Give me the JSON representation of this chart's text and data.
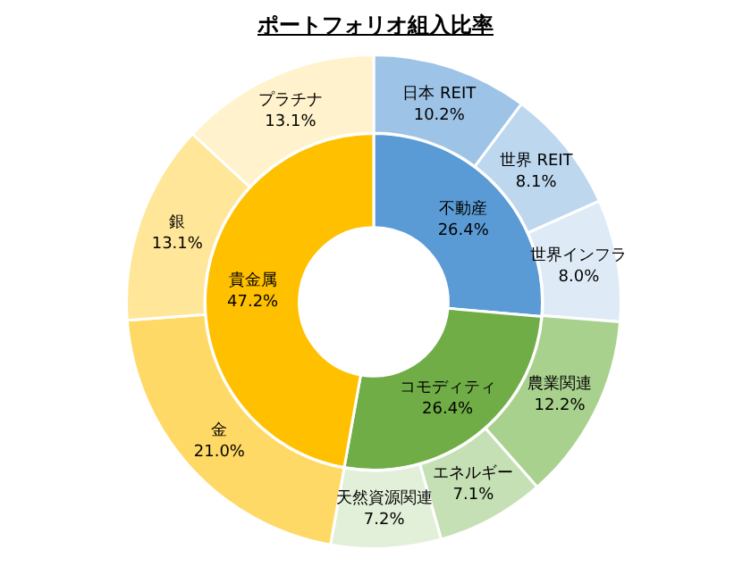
{
  "chart_data": [
    {
      "type": "donut",
      "title": "ポートフォリオ組入比率",
      "categories": [
        "不動産",
        "コモディティ",
        "貴金属"
      ],
      "values": [
        26.4,
        26.4,
        47.2
      ],
      "colors": [
        "#5b9bd5",
        "#70ad47",
        "#ffc000"
      ],
      "value_labels": [
        "26.4%",
        "26.4%",
        "47.2%"
      ]
    },
    {
      "type": "donut",
      "categories": [
        "日本 REIT",
        "世界 REIT",
        "世界インフラ",
        "農業関連",
        "エネルギー",
        "天然資源関連",
        "金",
        "銀",
        "プラチナ"
      ],
      "values": [
        10.2,
        8.1,
        8.0,
        12.2,
        7.1,
        7.2,
        21.0,
        13.1,
        13.1
      ],
      "colors": [
        "#9dc3e6",
        "#bdd7ee",
        "#deebf7",
        "#a9d18e",
        "#c5e0b4",
        "#e2f0d9",
        "#ffd966",
        "#ffe699",
        "#fff2cc"
      ],
      "value_labels": [
        "10.2%",
        "8.1%",
        "8.0%",
        "12.2%",
        "7.1%",
        "7.2%",
        "21.0%",
        "13.1%",
        "13.1%"
      ]
    }
  ]
}
